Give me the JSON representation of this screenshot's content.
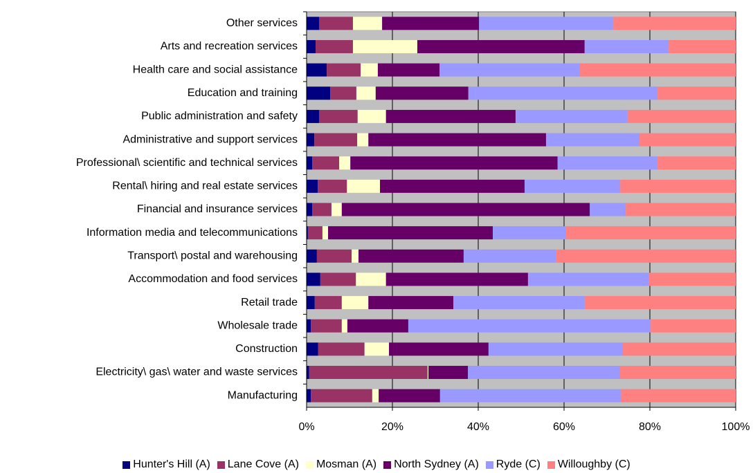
{
  "chart_data": {
    "type": "stacked_bar_horizontal",
    "categories": [
      "Other services",
      "Arts and recreation services",
      "Health care and social assistance",
      "Education and training",
      "Public administration and safety",
      "Administrative and support services",
      "Professional\\ scientific and technical services",
      "Rental\\ hiring and real estate services",
      "Financial and insurance services",
      "Information media and telecommunications",
      "Transport\\ postal and warehousing",
      "Accommodation and food services",
      "Retail trade",
      "Wholesale trade",
      "Construction",
      "Electricity\\ gas\\ water and waste services",
      "Manufacturing"
    ],
    "series": [
      {
        "name": "Hunter's Hill (A)",
        "color": "#000080",
        "values": [
          2.9,
          2.1,
          4.7,
          5.5,
          2.9,
          1.8,
          1.3,
          2.6,
          1.3,
          0.3,
          2.4,
          3.2,
          1.9,
          1.0,
          2.7,
          0.6,
          1.0
        ]
      },
      {
        "name": "Lane Cove (A)",
        "color": "#993366",
        "values": [
          7.9,
          8.7,
          7.9,
          6.1,
          9.0,
          10.0,
          6.3,
          6.8,
          4.5,
          3.4,
          8.1,
          8.3,
          6.3,
          7.2,
          10.8,
          27.6,
          14.3
        ]
      },
      {
        "name": "Mosman (A)",
        "color": "#ffffcc",
        "values": [
          6.8,
          15.0,
          4.0,
          4.5,
          6.6,
          2.6,
          2.6,
          7.7,
          2.4,
          1.3,
          1.6,
          7.0,
          6.2,
          1.3,
          5.7,
          0.2,
          1.5
        ]
      },
      {
        "name": "North Sydney (A)",
        "color": "#660066",
        "values": [
          22.6,
          39.0,
          14.4,
          21.6,
          30.2,
          41.4,
          48.3,
          33.7,
          57.8,
          38.4,
          24.5,
          33.1,
          19.8,
          14.2,
          23.2,
          9.2,
          14.3
        ]
      },
      {
        "name": "Ryde (C)",
        "color": "#9999ff",
        "values": [
          31.3,
          19.6,
          32.7,
          44.1,
          26.1,
          21.8,
          23.3,
          22.3,
          8.4,
          17.1,
          21.5,
          28.1,
          30.6,
          56.5,
          31.3,
          35.3,
          42.1
        ]
      },
      {
        "name": "Willoughby (C)",
        "color": "#ff8080",
        "values": [
          28.5,
          15.6,
          36.3,
          18.2,
          25.2,
          22.4,
          18.2,
          26.9,
          25.6,
          39.5,
          41.9,
          20.3,
          35.2,
          19.8,
          26.3,
          27.1,
          26.8
        ]
      }
    ],
    "xlim": [
      0,
      100
    ],
    "xticks": [
      {
        "value": 0,
        "label": "0%"
      },
      {
        "value": 20,
        "label": "20%"
      },
      {
        "value": 40,
        "label": "40%"
      },
      {
        "value": 60,
        "label": "60%"
      },
      {
        "value": 80,
        "label": "80%"
      },
      {
        "value": 100,
        "label": "100%"
      }
    ],
    "grid": true,
    "plot_background": "#c0c0c0",
    "legend": "bottom"
  }
}
